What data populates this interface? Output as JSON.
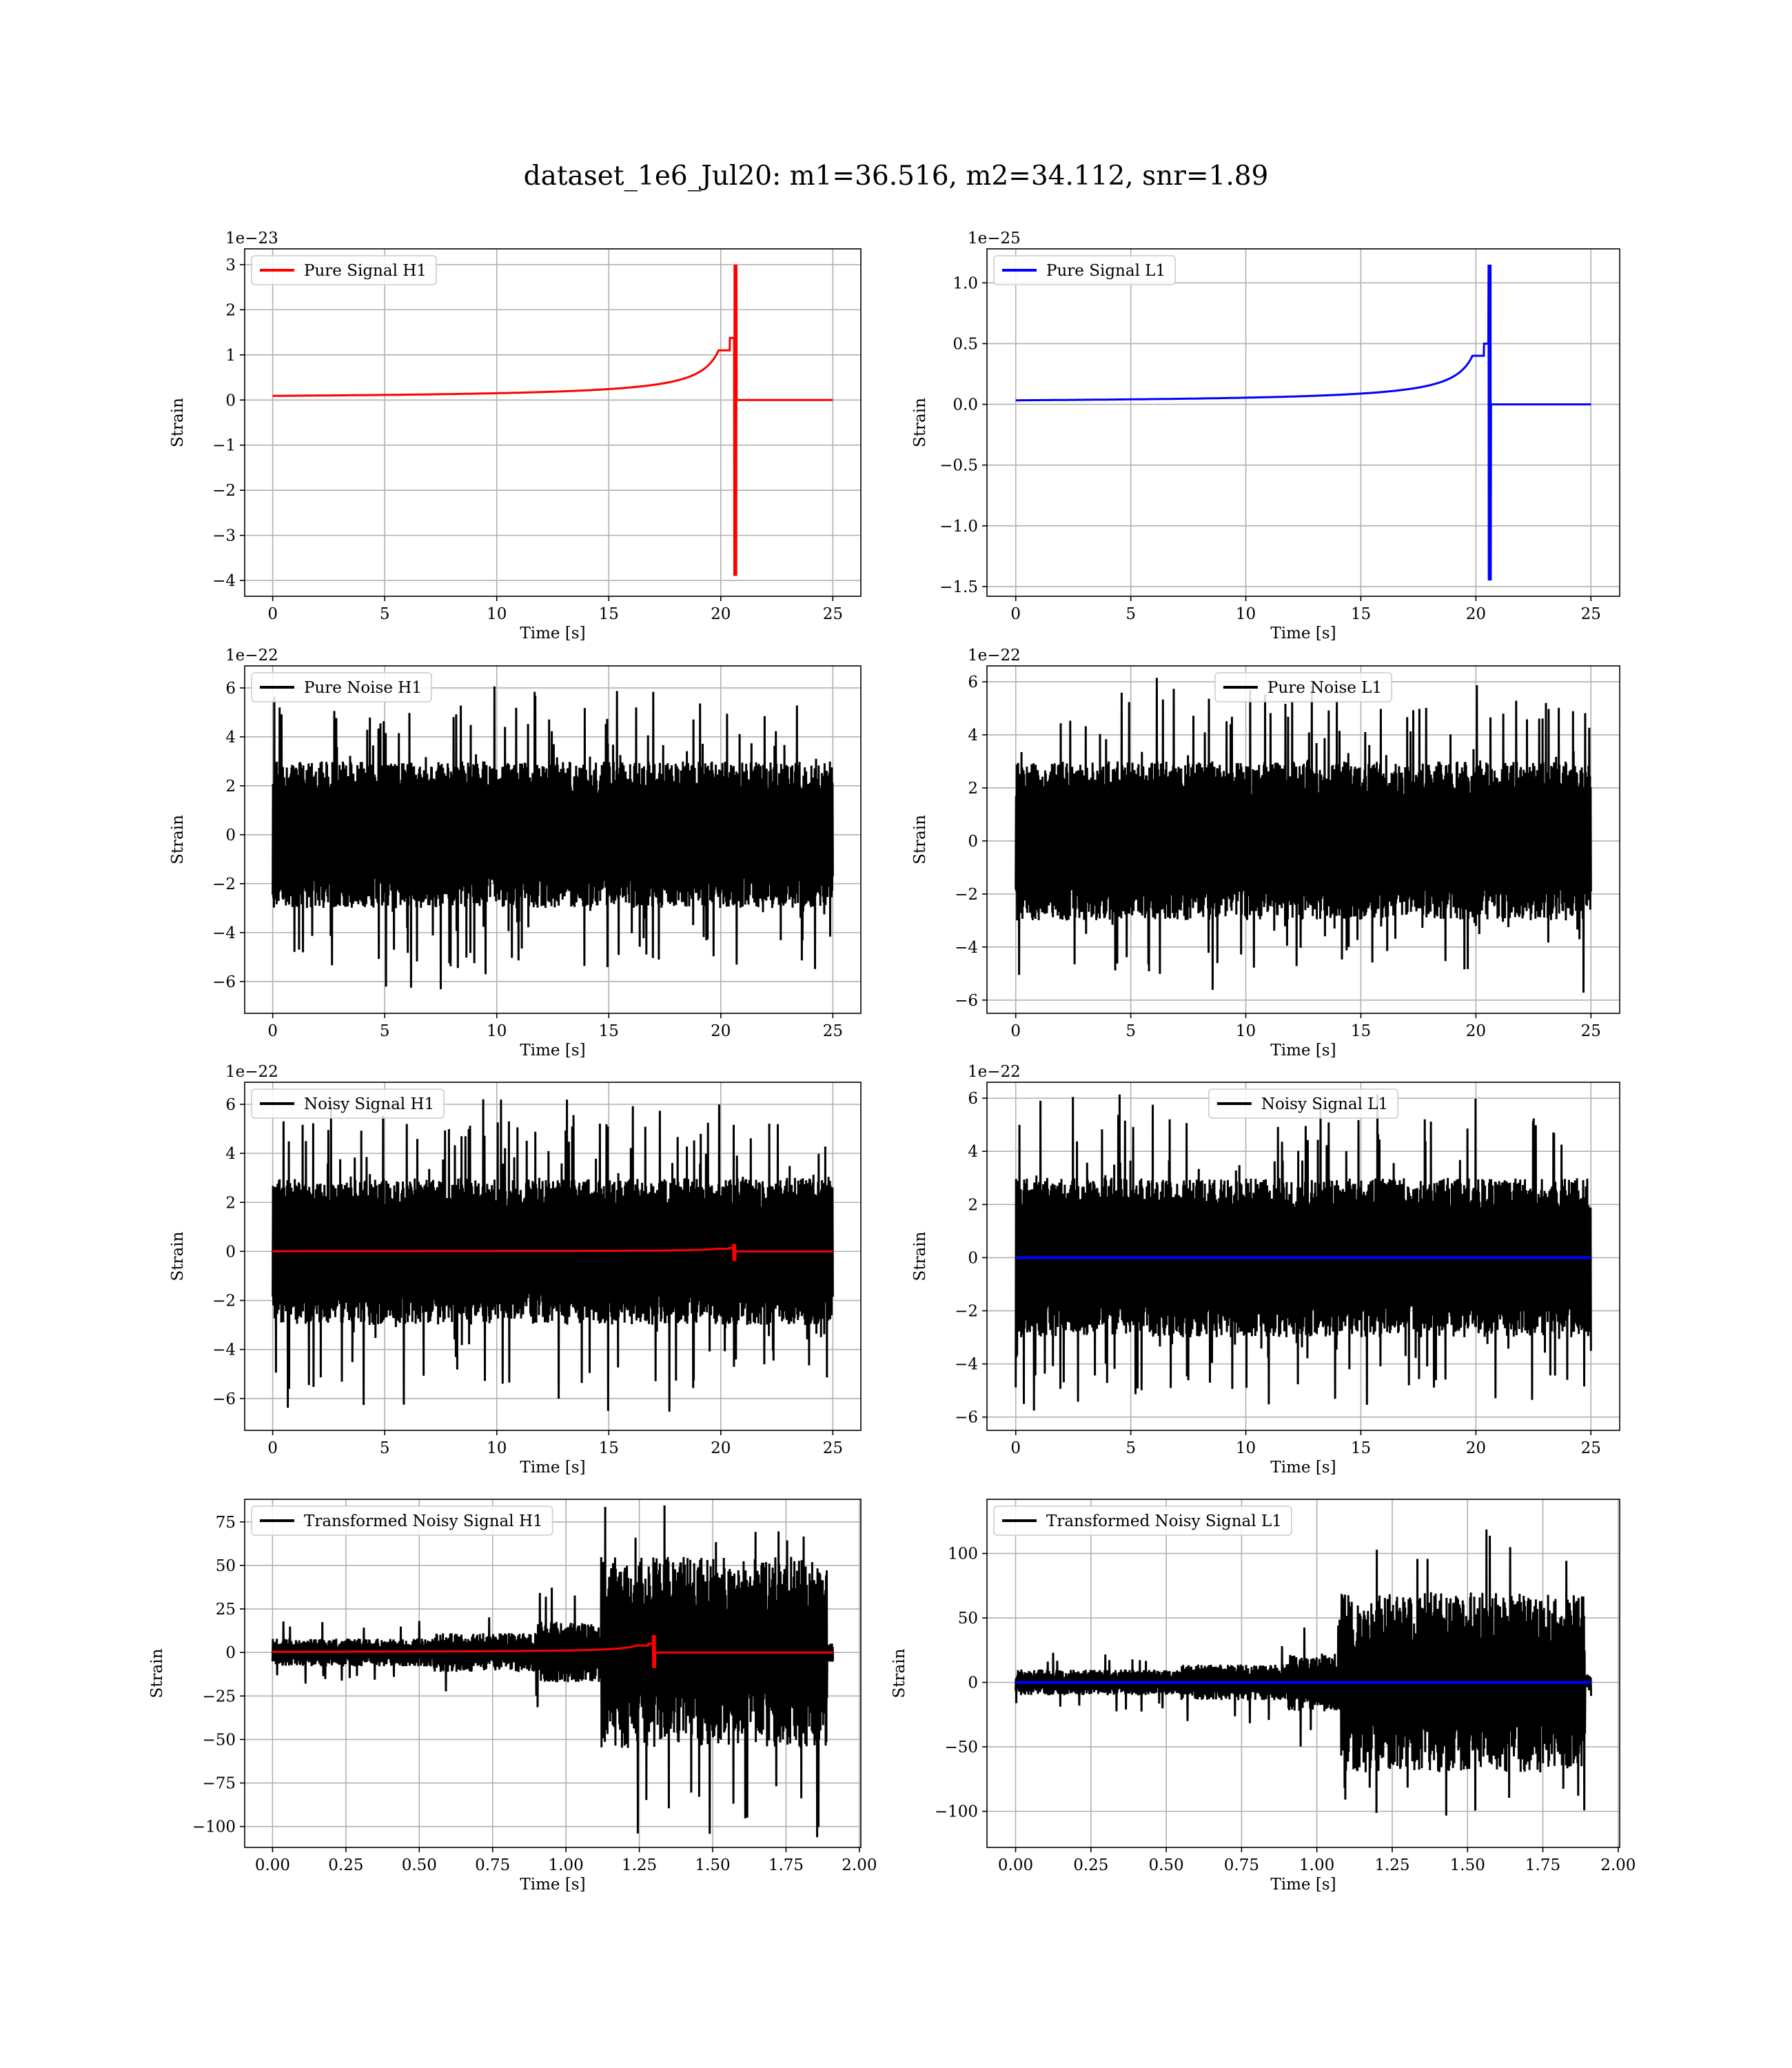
{
  "figure": {
    "suptitle": "dataset_1e6_Jul20: m1=36.516, m2=34.112, snr=1.89"
  },
  "colors": {
    "h1_signal": "#ff0000",
    "l1_signal": "#0000ff",
    "noise": "#000000",
    "grid": "#b0b0b0"
  },
  "chart_data": [
    {
      "id": "pure-signal-h1",
      "type": "line",
      "grid": true,
      "xlabel": "Time [s]",
      "ylabel": "Strain",
      "offset_text": "1e−23",
      "xlim": [
        -1.25,
        26.25
      ],
      "ylim": [
        -4.35,
        3.35
      ],
      "xticks": [
        0,
        5,
        10,
        15,
        20,
        25
      ],
      "xtick_labels": [
        "0",
        "5",
        "10",
        "15",
        "20",
        "25"
      ],
      "yticks": [
        -4,
        -3,
        -2,
        -1,
        0,
        1,
        2,
        3
      ],
      "ytick_labels": [
        "−4",
        "−3",
        "−2",
        "−1",
        "0",
        "1",
        "2",
        "3"
      ],
      "legend_loc": "upper left",
      "series": [
        {
          "name": "Pure Signal H1",
          "kind": "chirp",
          "color_key": "h1_signal",
          "x_range": [
            0,
            25
          ],
          "t_merge": 20.65,
          "amp_max": 3.0,
          "amp_min": -3.9,
          "amp_mid": 1.1
        }
      ]
    },
    {
      "id": "pure-signal-l1",
      "type": "line",
      "grid": true,
      "xlabel": "Time [s]",
      "ylabel": "Strain",
      "offset_text": "1e−25",
      "xlim": [
        -1.25,
        26.25
      ],
      "ylim": [
        -1.58,
        1.28
      ],
      "xticks": [
        0,
        5,
        10,
        15,
        20,
        25
      ],
      "xtick_labels": [
        "0",
        "5",
        "10",
        "15",
        "20",
        "25"
      ],
      "yticks": [
        -1.5,
        -1.0,
        -0.5,
        0.0,
        0.5,
        1.0
      ],
      "ytick_labels": [
        "−1.5",
        "−1.0",
        "−0.5",
        "0.0",
        "0.5",
        "1.0"
      ],
      "legend_loc": "upper left",
      "series": [
        {
          "name": "Pure Signal L1",
          "kind": "chirp",
          "color_key": "l1_signal",
          "x_range": [
            0,
            25
          ],
          "t_merge": 20.6,
          "amp_max": 1.15,
          "amp_min": -1.45,
          "amp_mid": 0.4
        }
      ]
    },
    {
      "id": "pure-noise-h1",
      "type": "line",
      "grid": true,
      "xlabel": "Time [s]",
      "ylabel": "Strain",
      "offset_text": "1e−22",
      "xlim": [
        -1.25,
        26.25
      ],
      "ylim": [
        -7.3,
        6.9
      ],
      "xticks": [
        0,
        5,
        10,
        15,
        20,
        25
      ],
      "xtick_labels": [
        "0",
        "5",
        "10",
        "15",
        "20",
        "25"
      ],
      "yticks": [
        -6,
        -4,
        -2,
        0,
        2,
        4,
        6
      ],
      "ytick_labels": [
        "−6",
        "−4",
        "−2",
        "0",
        "2",
        "4",
        "6"
      ],
      "legend_loc": "upper left",
      "series": [
        {
          "name": "Pure Noise H1",
          "kind": "noise",
          "color_key": "noise",
          "x_range": [
            0,
            25
          ],
          "core": 3.0,
          "peak": 6.3,
          "trough": -6.6
        }
      ]
    },
    {
      "id": "pure-noise-l1",
      "type": "line",
      "grid": true,
      "xlabel": "Time [s]",
      "ylabel": "Strain",
      "offset_text": "1e−22",
      "xlim": [
        -1.25,
        26.25
      ],
      "ylim": [
        -6.5,
        6.6
      ],
      "xticks": [
        0,
        5,
        10,
        15,
        20,
        25
      ],
      "xtick_labels": [
        "0",
        "5",
        "10",
        "15",
        "20",
        "25"
      ],
      "yticks": [
        -6,
        -4,
        -2,
        0,
        2,
        4,
        6
      ],
      "ytick_labels": [
        "−6",
        "−4",
        "−2",
        "0",
        "2",
        "4",
        "6"
      ],
      "legend_loc": "upper center",
      "series": [
        {
          "name": "Pure Noise L1",
          "kind": "noise",
          "color_key": "noise",
          "x_range": [
            0,
            25
          ],
          "core": 3.0,
          "peak": 6.2,
          "trough": -5.8
        }
      ]
    },
    {
      "id": "noisy-signal-h1",
      "type": "line",
      "grid": true,
      "xlabel": "Time [s]",
      "ylabel": "Strain",
      "offset_text": "1e−22",
      "xlim": [
        -1.25,
        26.25
      ],
      "ylim": [
        -7.3,
        6.9
      ],
      "xticks": [
        0,
        5,
        10,
        15,
        20,
        25
      ],
      "xtick_labels": [
        "0",
        "5",
        "10",
        "15",
        "20",
        "25"
      ],
      "yticks": [
        -6,
        -4,
        -2,
        0,
        2,
        4,
        6
      ],
      "ytick_labels": [
        "−6",
        "−4",
        "−2",
        "0",
        "2",
        "4",
        "6"
      ],
      "legend_loc": "upper left",
      "series": [
        {
          "name": "Noisy Signal H1",
          "kind": "noise",
          "color_key": "noise",
          "x_range": [
            0,
            25
          ],
          "core": 3.0,
          "peak": 6.3,
          "trough": -6.6
        },
        {
          "kind": "chirp",
          "color_key": "h1_signal",
          "x_range": [
            0,
            25
          ],
          "t_merge": 20.6,
          "amp_max": 0.3,
          "amp_min": -0.39,
          "amp_mid": 0.11
        }
      ]
    },
    {
      "id": "noisy-signal-l1",
      "type": "line",
      "grid": true,
      "xlabel": "Time [s]",
      "ylabel": "Strain",
      "offset_text": "1e−22",
      "xlim": [
        -1.25,
        26.25
      ],
      "ylim": [
        -6.5,
        6.6
      ],
      "xticks": [
        0,
        5,
        10,
        15,
        20,
        25
      ],
      "xtick_labels": [
        "0",
        "5",
        "10",
        "15",
        "20",
        "25"
      ],
      "yticks": [
        -6,
        -4,
        -2,
        0,
        2,
        4,
        6
      ],
      "ytick_labels": [
        "−6",
        "−4",
        "−2",
        "0",
        "2",
        "4",
        "6"
      ],
      "legend_loc": "upper center",
      "series": [
        {
          "name": "Noisy Signal L1",
          "kind": "noise",
          "color_key": "noise",
          "x_range": [
            0,
            25
          ],
          "core": 3.0,
          "peak": 6.2,
          "trough": -5.8
        },
        {
          "kind": "flat",
          "color_key": "l1_signal",
          "x_range": [
            0,
            25
          ]
        }
      ]
    },
    {
      "id": "transformed-noisy-signal-h1",
      "type": "line",
      "grid": true,
      "xlabel": "Time [s]",
      "ylabel": "Strain",
      "offset_text": "",
      "xlim": [
        -0.095,
        2.005
      ],
      "ylim": [
        -112,
        88
      ],
      "xticks": [
        0,
        0.25,
        0.5,
        0.75,
        1.0,
        1.25,
        1.5,
        1.75,
        2.0
      ],
      "xtick_labels": [
        "0.00",
        "0.25",
        "0.50",
        "0.75",
        "1.00",
        "1.25",
        "1.50",
        "1.75",
        "2.00"
      ],
      "yticks": [
        -100,
        -75,
        -50,
        -25,
        0,
        25,
        50,
        75
      ],
      "ytick_labels": [
        "−100",
        "−75",
        "−50",
        "−25",
        "0",
        "25",
        "50",
        "75"
      ],
      "legend_loc": "upper left",
      "series": [
        {
          "name": "Transformed Noisy Signal H1",
          "kind": "transformed",
          "color_key": "noise",
          "x_range": [
            0,
            1.91
          ],
          "split": 1.12,
          "low": 8,
          "high": 55,
          "peak": 87,
          "trough": -108
        },
        {
          "kind": "chirp",
          "color_key": "h1_signal",
          "x_range": [
            0,
            1.91
          ],
          "t_merge": 1.3,
          "amp_max": 10,
          "amp_min": -9,
          "amp_mid": 4
        }
      ]
    },
    {
      "id": "transformed-noisy-signal-l1",
      "type": "line",
      "grid": true,
      "xlabel": "Time [s]",
      "ylabel": "Strain",
      "offset_text": "",
      "xlim": [
        -0.095,
        2.005
      ],
      "ylim": [
        -128,
        142
      ],
      "xticks": [
        0,
        0.25,
        0.5,
        0.75,
        1.0,
        1.25,
        1.5,
        1.75,
        2.0
      ],
      "xtick_labels": [
        "0.00",
        "0.25",
        "0.50",
        "0.75",
        "1.00",
        "1.25",
        "1.50",
        "1.75",
        "2.00"
      ],
      "yticks": [
        -100,
        -50,
        0,
        50,
        100
      ],
      "ytick_labels": [
        "−100",
        "−50",
        "0",
        "50",
        "100"
      ],
      "legend_loc": "upper left",
      "series": [
        {
          "name": "Transformed Noisy Signal L1",
          "kind": "transformed",
          "color_key": "noise",
          "x_range": [
            0,
            1.91
          ],
          "split": 1.08,
          "low": 10,
          "high": 70,
          "peak": 130,
          "trough": -113
        },
        {
          "kind": "flat",
          "color_key": "l1_signal",
          "x_range": [
            0,
            1.91
          ]
        }
      ]
    }
  ]
}
